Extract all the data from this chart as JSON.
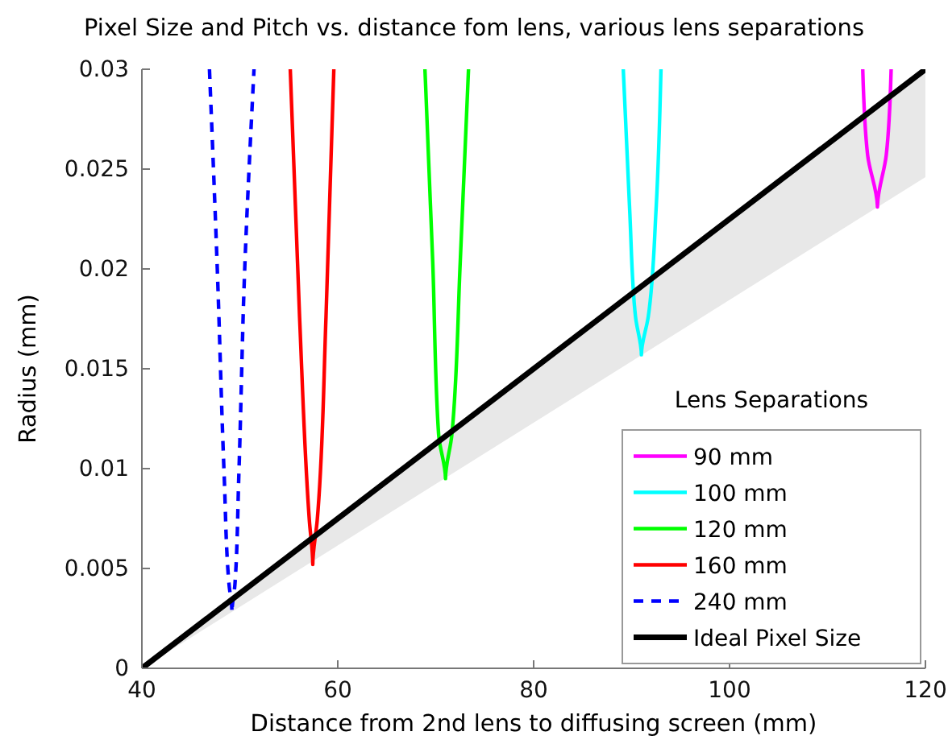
{
  "chart_data": {
    "type": "line",
    "title": "Pixel Size and Pitch vs. distance fom lens, various lens separations",
    "xlabel": "Distance from 2nd lens to diffusing screen (mm)",
    "ylabel": "Radius (mm)",
    "legend_title": "Lens Separations",
    "legend": "bottom right",
    "grid": false,
    "xlim": [
      40,
      120
    ],
    "xticks": [
      40,
      60,
      80,
      100,
      120
    ],
    "ylim": [
      0,
      0.03
    ],
    "yticks": [
      0,
      0.005,
      0.01,
      0.015,
      0.02,
      0.025,
      0.03
    ],
    "series": [
      {
        "name": "90 mm",
        "color": "#ff00ff",
        "x": [
          113.6,
          114.1,
          115.1,
          116.0,
          116.5
        ],
        "values": [
          0.03,
          0.0257,
          0.0231,
          0.0257,
          0.03
        ]
      },
      {
        "name": "100 mm",
        "color": "#00ffff",
        "x": [
          89.15,
          89.8,
          90.4,
          91.0,
          91.7,
          92.5,
          93.0
        ],
        "values": [
          0.03,
          0.023,
          0.0176,
          0.0157,
          0.0176,
          0.023,
          0.03
        ]
      },
      {
        "name": "120 mm",
        "color": "#00ff00",
        "x": [
          68.9,
          69.7,
          70.3,
          71.0,
          71.65,
          72.5,
          73.35
        ],
        "values": [
          0.03,
          0.0203,
          0.0117,
          0.0095,
          0.0117,
          0.0203,
          0.03
        ]
      },
      {
        "name": "160 mm",
        "color": "#ff0000",
        "x": [
          55.15,
          56.1,
          57.1,
          57.45,
          57.9,
          58.8,
          59.6
        ],
        "values": [
          0.03,
          0.0176,
          0.0074,
          0.0052,
          0.0074,
          0.0176,
          0.03
        ]
      },
      {
        "name": "240 mm",
        "color": "#0000ff",
        "line_style": "dashed",
        "x": [
          46.9,
          47.7,
          48.4,
          48.9,
          49.2,
          49.5,
          49.9,
          50.5,
          51.45
        ],
        "values": [
          0.03,
          0.02,
          0.0097,
          0.0042,
          0.0028,
          0.0042,
          0.0097,
          0.02,
          0.03
        ]
      },
      {
        "name": "Ideal Pixel Size",
        "color": "#000000",
        "x": [
          40,
          120
        ],
        "values": [
          0,
          0.03
        ],
        "lower": [
          0,
          0.0246
        ],
        "upper": [
          0,
          0.03
        ]
      }
    ]
  }
}
